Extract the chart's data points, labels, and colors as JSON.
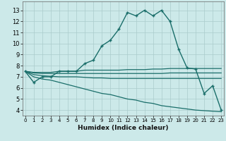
{
  "xlabel": "Humidex (Indice chaleur)",
  "bg_color": "#cce9e9",
  "grid_color": "#aacccc",
  "line_color": "#1a6e6a",
  "x_ticks": [
    0,
    1,
    2,
    3,
    4,
    5,
    6,
    7,
    8,
    9,
    10,
    11,
    12,
    13,
    14,
    15,
    16,
    17,
    18,
    19,
    20,
    21,
    22,
    23
  ],
  "ylim": [
    3.5,
    13.8
  ],
  "xlim": [
    -0.3,
    23.3
  ],
  "yticks": [
    4,
    5,
    6,
    7,
    8,
    9,
    10,
    11,
    12,
    13
  ],
  "main_line": [
    7.5,
    6.5,
    7.0,
    7.0,
    7.5,
    7.5,
    7.5,
    8.2,
    8.5,
    9.8,
    10.3,
    11.3,
    12.8,
    12.5,
    13.0,
    12.5,
    13.0,
    12.0,
    9.5,
    7.8,
    7.7,
    5.5,
    6.2,
    4.0
  ],
  "upper_line": [
    7.5,
    7.4,
    7.4,
    7.4,
    7.5,
    7.5,
    7.5,
    7.6,
    7.6,
    7.6,
    7.6,
    7.6,
    7.65,
    7.65,
    7.65,
    7.7,
    7.7,
    7.75,
    7.75,
    7.75,
    7.75,
    7.75,
    7.75,
    7.75
  ],
  "mid_line": [
    7.5,
    7.35,
    7.3,
    7.3,
    7.3,
    7.3,
    7.3,
    7.3,
    7.3,
    7.3,
    7.3,
    7.3,
    7.3,
    7.3,
    7.3,
    7.3,
    7.3,
    7.35,
    7.35,
    7.35,
    7.35,
    7.35,
    7.35,
    7.35
  ],
  "lower_line": [
    7.5,
    7.2,
    7.1,
    7.05,
    7.0,
    7.0,
    7.0,
    6.95,
    6.9,
    6.9,
    6.85,
    6.85,
    6.85,
    6.85,
    6.85,
    6.85,
    6.85,
    6.85,
    6.85,
    6.85,
    6.85,
    6.85,
    6.85,
    6.85
  ],
  "diverge_line": [
    7.5,
    7.0,
    6.8,
    6.7,
    6.5,
    6.3,
    6.1,
    5.9,
    5.7,
    5.5,
    5.4,
    5.2,
    5.0,
    4.9,
    4.7,
    4.6,
    4.4,
    4.3,
    4.2,
    4.1,
    4.0,
    3.95,
    3.9,
    3.85
  ]
}
